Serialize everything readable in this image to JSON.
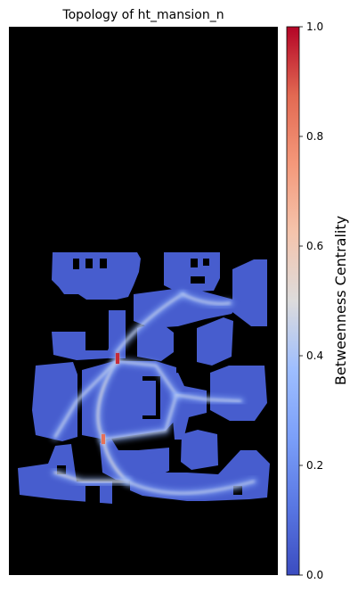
{
  "chart_data": {
    "type": "heatmap",
    "title": "Topology of ht_mansion_n",
    "colorbar": {
      "label": "Betweenness Centrality",
      "colormap": "coolwarm",
      "range": [
        0.0,
        1.0
      ],
      "ticks": [
        "0.0",
        "0.2",
        "0.4",
        "0.6",
        "0.8",
        "1.0"
      ],
      "tick_values": [
        0.0,
        0.2,
        0.4,
        0.6,
        0.8,
        1.0
      ]
    },
    "background_color": "#000000",
    "free_space_value": 0.05,
    "paths": [
      {
        "name": "north-left-room-spine",
        "value": 0.25
      },
      {
        "name": "north-corridor-link",
        "value": 0.3
      },
      {
        "name": "north-right-room-exit",
        "value": 0.3
      },
      {
        "name": "central-hall-diagonal",
        "value": 0.35
      },
      {
        "name": "central-hall-upper-edge",
        "value": 0.3
      },
      {
        "name": "central-hall-lower-edge",
        "value": 0.3
      },
      {
        "name": "west-room-link",
        "value": 0.3
      },
      {
        "name": "east-corridor",
        "value": 0.3
      },
      {
        "name": "south-west-link",
        "value": 0.35
      },
      {
        "name": "south-corridor",
        "value": 0.35
      },
      {
        "name": "south-east-sweep",
        "value": 0.3
      }
    ],
    "hotspots": [
      {
        "name": "upper-doorway",
        "value": 0.95
      },
      {
        "name": "lower-doorway",
        "value": 0.85
      }
    ]
  }
}
